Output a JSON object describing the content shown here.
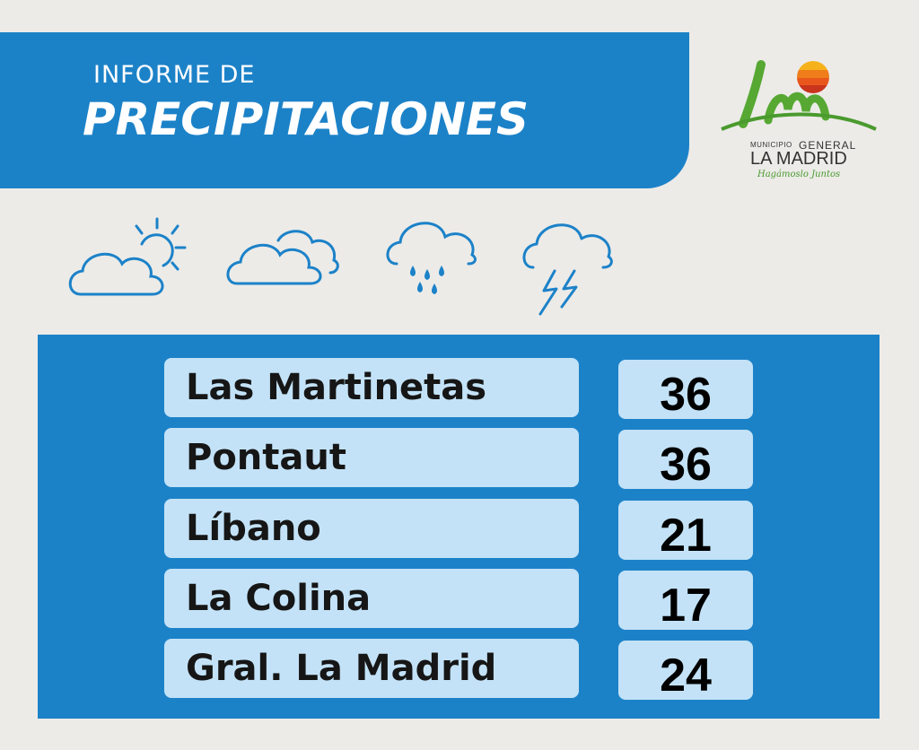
{
  "header": {
    "title_line1": "INFORME DE",
    "title_line2": "PRECIPITACIONES"
  },
  "logo": {
    "municipio": "MUNICIPIO",
    "general": "GENERAL",
    "name": "LA MADRID",
    "tagline": "Hagámoslo Juntos"
  },
  "icons": [
    "partly-cloudy-icon",
    "cloudy-icon",
    "rain-icon",
    "thunderstorm-icon"
  ],
  "colors": {
    "banner_blue": "#1c82c8",
    "cell_light_blue": "#c3e2f7",
    "background": "#ecebe8",
    "logo_green": "#4a9a2e",
    "logo_orange": "#f39a1e"
  },
  "rows": [
    {
      "locality": "Las Martinetas",
      "value": "36"
    },
    {
      "locality": "Pontaut",
      "value": "36"
    },
    {
      "locality": "Líbano",
      "value": "21"
    },
    {
      "locality": "La Colina",
      "value": "17"
    },
    {
      "locality": "Gral. La Madrid",
      "value": "24"
    }
  ]
}
